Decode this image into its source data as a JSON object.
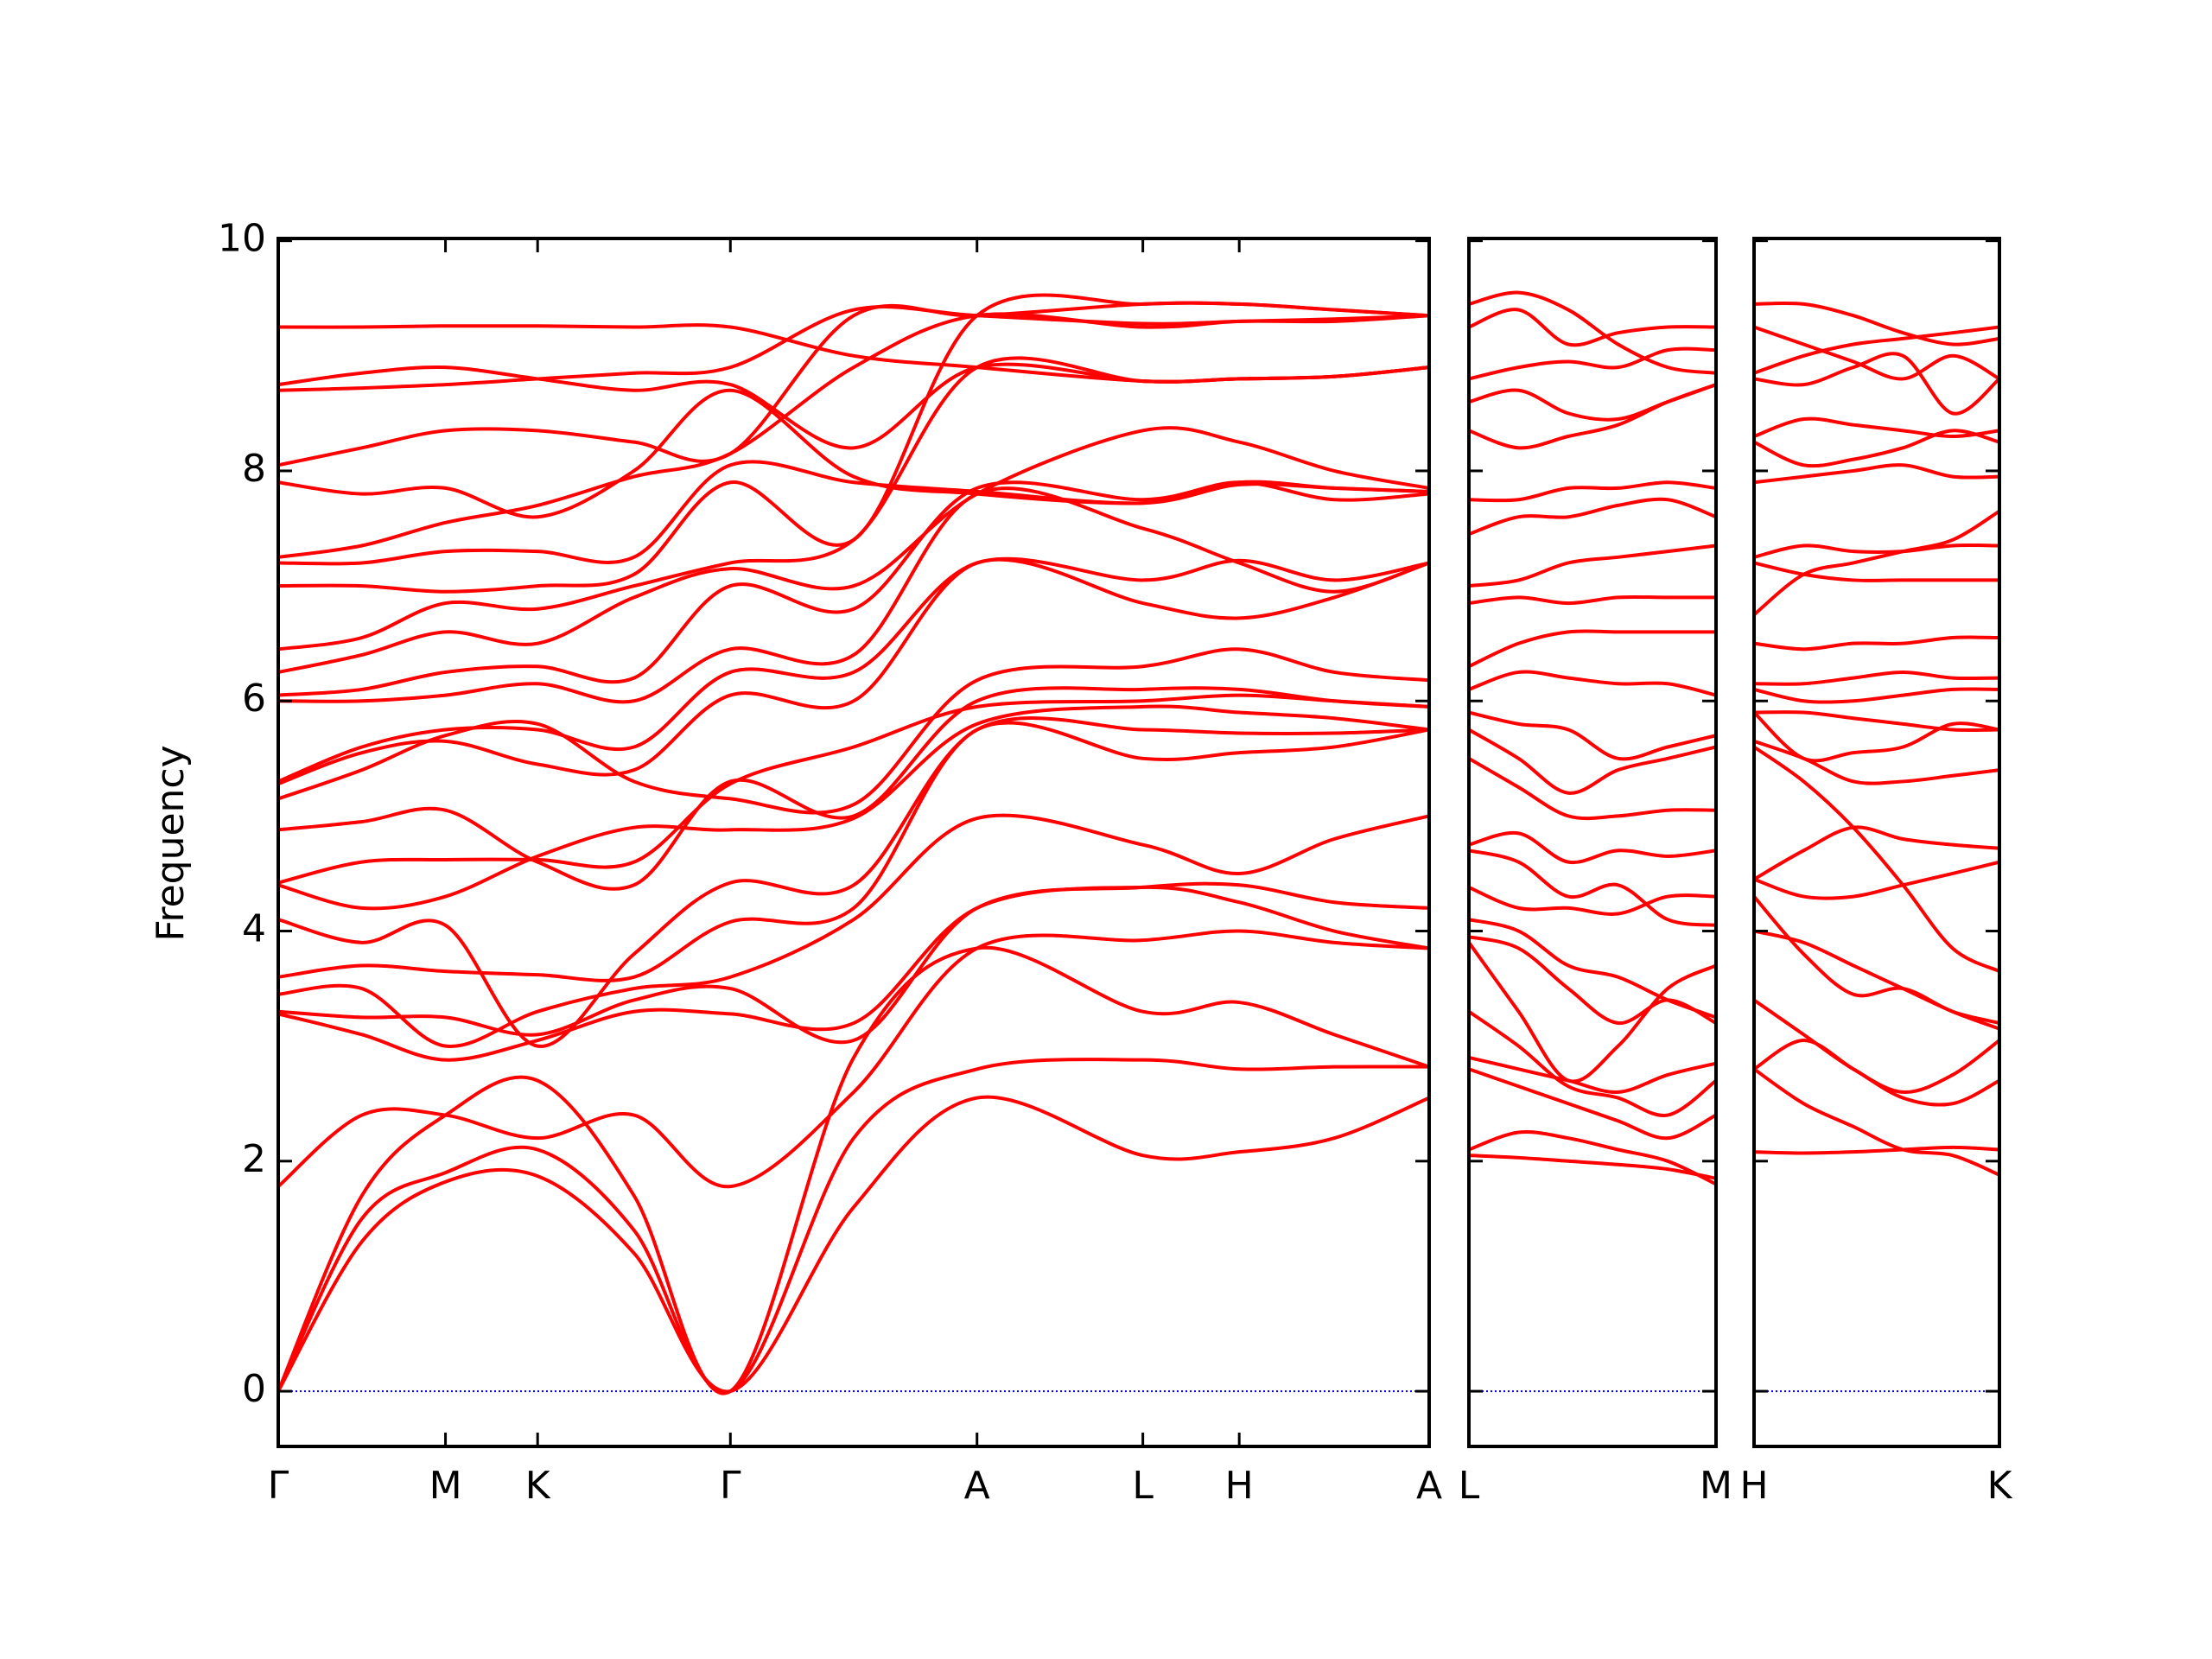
{
  "chart_data": [
    {
      "type": "line",
      "ylabel": "Frequency",
      "color": "#ff0000",
      "hline": 0,
      "hline_color": "#0000ff",
      "ylim": [
        -0.48,
        10.02
      ],
      "yticks": [
        0,
        2,
        4,
        6,
        8,
        10
      ],
      "xlim": [
        0,
        812
      ],
      "xticks": [
        {
          "value": 0,
          "label": "Γ"
        },
        {
          "value": 118,
          "label": "M"
        },
        {
          "value": 183,
          "label": "K"
        },
        {
          "value": 319,
          "label": "Γ"
        },
        {
          "value": 493,
          "label": "A"
        },
        {
          "value": 610,
          "label": "L"
        },
        {
          "value": 678,
          "label": "H"
        },
        {
          "value": 812,
          "label": "A"
        }
      ],
      "x": [
        0,
        59,
        118,
        183,
        251,
        319,
        406,
        493,
        610,
        678,
        745,
        812
      ],
      "series": [
        {
          "values": [
            0,
            1.3,
            1.82,
            1.87,
            1.2,
            0,
            1.6,
            2.55,
            2.05,
            2.08,
            2.2,
            2.55
          ]
        },
        {
          "values": [
            0,
            1.5,
            1.9,
            2.1,
            1.4,
            0,
            2.2,
            2.8,
            2.88,
            2.8,
            2.82,
            2.82
          ]
        },
        {
          "values": [
            0,
            1.7,
            2.4,
            2.7,
            1.7,
            0,
            2.9,
            3.85,
            3.3,
            3.38,
            3.1,
            2.82
          ]
        },
        {
          "values": [
            1.78,
            2.4,
            2.4,
            2.2,
            2.4,
            1.78,
            2.6,
            3.85,
            3.92,
            4.0,
            3.9,
            3.85
          ]
        },
        {
          "values": [
            3.28,
            3.1,
            2.88,
            3.05,
            3.3,
            3.28,
            3.2,
            4.2,
            4.38,
            4.25,
            4.0,
            3.85
          ]
        },
        {
          "values": [
            3.3,
            3.25,
            3.25,
            3.1,
            3.4,
            3.5,
            3.05,
            4.2,
            4.38,
            4.4,
            4.25,
            4.2
          ]
        },
        {
          "values": [
            3.45,
            3.5,
            3.0,
            3.3,
            3.5,
            3.6,
            4.1,
            4.98,
            4.75,
            4.5,
            4.8,
            5.0
          ]
        },
        {
          "values": [
            3.6,
            3.7,
            3.65,
            3.62,
            3.6,
            4.08,
            4.2,
            5.75,
            5.5,
            5.55,
            5.6,
            5.75
          ]
        },
        {
          "values": [
            4.1,
            3.9,
            4.05,
            3.0,
            3.8,
            4.42,
            4.4,
            5.75,
            5.75,
            5.72,
            5.72,
            5.75
          ]
        },
        {
          "values": [
            4.4,
            4.2,
            4.3,
            4.65,
            4.9,
            4.88,
            4.98,
            5.8,
            5.95,
            5.9,
            5.85,
            5.75
          ]
        },
        {
          "values": [
            4.42,
            4.6,
            4.62,
            4.62,
            4.6,
            5.28,
            5.6,
            5.95,
            6.0,
            6.05,
            6.0,
            5.95
          ]
        },
        {
          "values": [
            4.88,
            4.95,
            5.05,
            4.6,
            4.4,
            5.3,
            5.0,
            6.0,
            6.1,
            6.1,
            6.0,
            5.95
          ]
        },
        {
          "values": [
            5.15,
            5.4,
            5.7,
            5.8,
            5.3,
            5.15,
            5.1,
            6.18,
            6.3,
            6.45,
            6.25,
            6.18
          ]
        },
        {
          "values": [
            5.28,
            5.55,
            5.65,
            5.45,
            5.4,
            6.05,
            6.0,
            7.2,
            6.85,
            6.72,
            6.9,
            7.2
          ]
        },
        {
          "values": [
            5.3,
            5.6,
            5.75,
            5.75,
            5.6,
            6.25,
            6.25,
            7.2,
            7.05,
            7.22,
            7.05,
            7.2
          ]
        },
        {
          "values": [
            6.0,
            6.0,
            6.05,
            6.15,
            6.0,
            6.45,
            6.4,
            7.8,
            7.5,
            7.2,
            6.95,
            7.2
          ]
        },
        {
          "values": [
            6.05,
            6.1,
            6.25,
            6.3,
            6.2,
            7.0,
            6.8,
            7.85,
            7.75,
            7.9,
            7.75,
            7.8
          ]
        },
        {
          "values": [
            6.25,
            6.4,
            6.6,
            6.5,
            6.9,
            7.15,
            7.0,
            7.8,
            8.35,
            8.25,
            8.0,
            7.85
          ]
        },
        {
          "values": [
            6.45,
            6.55,
            6.85,
            6.8,
            7.0,
            7.2,
            7.4,
            8.9,
            8.78,
            8.8,
            8.82,
            8.9
          ]
        },
        {
          "values": [
            7.0,
            7.0,
            6.95,
            7.0,
            7.1,
            7.9,
            7.4,
            9.35,
            9.45,
            9.45,
            9.4,
            9.35
          ]
        },
        {
          "values": [
            7.2,
            7.2,
            7.3,
            7.3,
            7.25,
            8.05,
            7.9,
            7.82,
            7.72,
            7.9,
            7.85,
            7.82
          ]
        },
        {
          "values": [
            7.25,
            7.35,
            7.55,
            7.7,
            7.95,
            8.15,
            8.9,
            9.35,
            9.25,
            9.3,
            9.3,
            9.35
          ]
        },
        {
          "values": [
            7.9,
            7.8,
            7.85,
            7.6,
            8.0,
            8.7,
            7.95,
            7.8,
            7.72,
            7.88,
            7.85,
            7.82
          ]
        },
        {
          "values": [
            8.05,
            8.2,
            8.35,
            8.35,
            8.25,
            8.15,
            9.35,
            9.35,
            9.45,
            9.45,
            9.4,
            9.35
          ]
        },
        {
          "values": [
            8.7,
            8.72,
            8.75,
            8.8,
            8.85,
            8.9,
            9.4,
            9.35,
            9.28,
            9.3,
            9.32,
            9.35
          ]
        },
        {
          "values": [
            8.75,
            8.85,
            8.9,
            8.8,
            8.7,
            8.75,
            8.2,
            8.9,
            8.78,
            8.8,
            8.82,
            8.9
          ]
        },
        {
          "values": [
            9.25,
            9.25,
            9.26,
            9.26,
            9.25,
            9.25,
            9.0,
            8.9,
            8.78,
            8.8,
            8.82,
            8.9
          ]
        }
      ]
    },
    {
      "type": "line",
      "color": "#ff0000",
      "hline": 0,
      "hline_color": "#0000ff",
      "xlim": [
        0,
        174
      ],
      "xticks": [
        {
          "value": 0,
          "label": "L"
        },
        {
          "value": 174,
          "label": "M"
        }
      ],
      "x": [
        0,
        35,
        70,
        105,
        140,
        174
      ],
      "series": [
        {
          "values": [
            2.05,
            2.03,
            2.0,
            1.97,
            1.93,
            1.85
          ]
        },
        {
          "values": [
            2.1,
            2.25,
            2.2,
            2.1,
            2.0,
            1.8
          ]
        },
        {
          "values": [
            2.8,
            2.65,
            2.5,
            2.35,
            2.2,
            2.4
          ]
        },
        {
          "values": [
            2.9,
            2.8,
            2.7,
            2.6,
            2.75,
            2.85
          ]
        },
        {
          "values": [
            3.3,
            3.0,
            2.65,
            2.55,
            2.4,
            2.7
          ]
        },
        {
          "values": [
            3.9,
            3.3,
            2.7,
            3.0,
            3.5,
            3.7
          ]
        },
        {
          "values": [
            3.95,
            3.85,
            3.5,
            3.2,
            3.4,
            3.2
          ]
        },
        {
          "values": [
            4.1,
            4.0,
            3.7,
            3.6,
            3.4,
            3.25
          ]
        },
        {
          "values": [
            4.38,
            4.2,
            4.2,
            4.15,
            4.3,
            4.3
          ]
        },
        {
          "values": [
            4.7,
            4.6,
            4.3,
            4.4,
            4.1,
            4.05
          ]
        },
        {
          "values": [
            4.75,
            4.85,
            4.6,
            4.7,
            4.65,
            4.7
          ]
        },
        {
          "values": [
            5.5,
            5.25,
            5.0,
            5.0,
            5.05,
            5.05
          ]
        },
        {
          "values": [
            5.75,
            5.5,
            5.2,
            5.4,
            5.5,
            5.6
          ]
        },
        {
          "values": [
            5.9,
            5.8,
            5.75,
            5.5,
            5.6,
            5.7
          ]
        },
        {
          "values": [
            6.1,
            6.25,
            6.2,
            6.15,
            6.15,
            6.05
          ]
        },
        {
          "values": [
            6.3,
            6.5,
            6.6,
            6.6,
            6.6,
            6.6
          ]
        },
        {
          "values": [
            6.85,
            6.9,
            6.85,
            6.9,
            6.9,
            6.9
          ]
        },
        {
          "values": [
            7.0,
            7.05,
            7.2,
            7.25,
            7.3,
            7.35
          ]
        },
        {
          "values": [
            7.45,
            7.6,
            7.6,
            7.7,
            7.75,
            7.6
          ]
        },
        {
          "values": [
            7.75,
            7.75,
            7.85,
            7.85,
            7.9,
            7.85
          ]
        },
        {
          "values": [
            8.35,
            8.2,
            8.3,
            8.4,
            8.6,
            8.75
          ]
        },
        {
          "values": [
            8.6,
            8.7,
            8.5,
            8.45,
            8.6,
            8.75
          ]
        },
        {
          "values": [
            8.8,
            8.9,
            8.95,
            8.9,
            9.05,
            9.05
          ]
        },
        {
          "values": [
            9.25,
            9.4,
            9.1,
            9.2,
            9.25,
            9.25
          ]
        },
        {
          "values": [
            9.45,
            9.55,
            9.4,
            9.1,
            8.9,
            8.85
          ]
        }
      ]
    },
    {
      "type": "line",
      "color": "#ff0000",
      "hline": 0,
      "hline_color": "#0000ff",
      "xlim": [
        0,
        173
      ],
      "xticks": [
        {
          "value": 0,
          "label": "H"
        },
        {
          "value": 173,
          "label": "K"
        }
      ],
      "x": [
        0,
        35,
        70,
        105,
        140,
        173
      ],
      "series": [
        {
          "values": [
            2.08,
            2.07,
            2.08,
            2.1,
            2.12,
            2.1
          ]
        },
        {
          "values": [
            2.8,
            2.5,
            2.3,
            2.1,
            2.05,
            1.88
          ]
        },
        {
          "values": [
            2.8,
            3.05,
            2.8,
            2.55,
            2.5,
            2.7
          ]
        },
        {
          "values": [
            3.4,
            3.1,
            2.8,
            2.6,
            2.75,
            3.05
          ]
        },
        {
          "values": [
            4.0,
            3.9,
            3.7,
            3.5,
            3.3,
            3.15
          ]
        },
        {
          "values": [
            4.3,
            3.8,
            3.45,
            3.5,
            3.3,
            3.2
          ]
        },
        {
          "values": [
            4.45,
            4.3,
            4.3,
            4.4,
            4.5,
            4.6
          ]
        },
        {
          "values": [
            4.45,
            4.7,
            4.9,
            4.8,
            4.75,
            4.72
          ]
        },
        {
          "values": [
            5.6,
            5.3,
            4.9,
            4.4,
            3.85,
            3.65
          ]
        },
        {
          "values": [
            5.65,
            5.5,
            5.3,
            5.3,
            5.35,
            5.4
          ]
        },
        {
          "values": [
            5.9,
            5.9,
            5.85,
            5.8,
            5.75,
            5.75
          ]
        },
        {
          "values": [
            5.9,
            5.5,
            5.55,
            5.6,
            5.8,
            5.75
          ]
        },
        {
          "values": [
            6.1,
            6.0,
            6.0,
            6.05,
            6.1,
            6.1
          ]
        },
        {
          "values": [
            6.15,
            6.15,
            6.2,
            6.25,
            6.2,
            6.2
          ]
        },
        {
          "values": [
            6.5,
            6.45,
            6.5,
            6.5,
            6.55,
            6.55
          ]
        },
        {
          "values": [
            6.75,
            7.1,
            7.2,
            7.3,
            7.4,
            7.65
          ]
        },
        {
          "values": [
            7.2,
            7.1,
            7.05,
            7.05,
            7.05,
            7.05
          ]
        },
        {
          "values": [
            7.25,
            7.35,
            7.3,
            7.3,
            7.35,
            7.35
          ]
        },
        {
          "values": [
            7.9,
            7.95,
            8.0,
            8.05,
            7.95,
            7.95
          ]
        },
        {
          "values": [
            8.25,
            8.05,
            8.1,
            8.2,
            8.35,
            8.25
          ]
        },
        {
          "values": [
            8.3,
            8.45,
            8.4,
            8.35,
            8.3,
            8.35
          ]
        },
        {
          "values": [
            8.8,
            8.75,
            8.9,
            9.0,
            8.5,
            8.8
          ]
        },
        {
          "values": [
            8.85,
            9.0,
            9.1,
            9.15,
            9.2,
            9.25
          ]
        },
        {
          "values": [
            9.25,
            9.1,
            8.95,
            8.8,
            9.0,
            8.8
          ]
        },
        {
          "values": [
            9.45,
            9.45,
            9.35,
            9.2,
            9.1,
            9.15
          ]
        }
      ]
    }
  ]
}
